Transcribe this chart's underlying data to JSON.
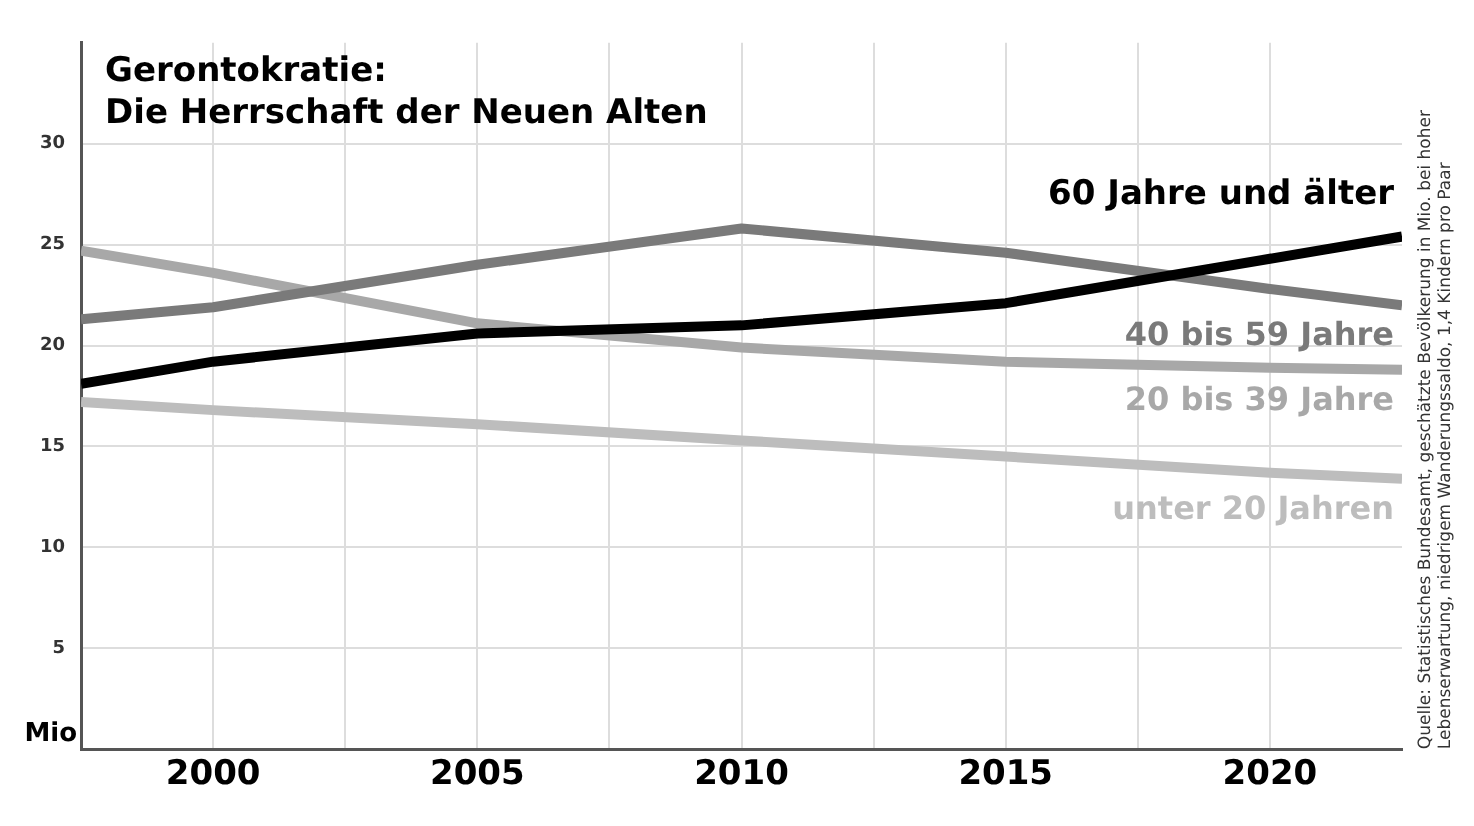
{
  "chart_data": {
    "type": "line",
    "title": "Gerontokratie:\nDie Herrschaft der Neuen Alten",
    "ylabel": "Mio",
    "annotations": [
      "Quelle: Statistisches Bundesamt, geschätzte Bevölkerung in Mio. bei hoher Lebenserwartung, niedrigem Wanderungssaldo, 1,4 Kindern pro Paar"
    ],
    "x": [
      1997.5,
      2000,
      2005,
      2010,
      2015,
      2020,
      2022.5
    ],
    "series": [
      {
        "name": "60 Jahre und älter",
        "color": "#000000",
        "values": [
          18.1,
          19.2,
          20.6,
          21.0,
          22.1,
          24.3,
          25.4
        ]
      },
      {
        "name": "40 bis 59 Jahre",
        "color": "#7a7a7a",
        "values": [
          21.3,
          21.9,
          24.0,
          25.8,
          24.6,
          22.8,
          22.0
        ]
      },
      {
        "name": "20 bis 39 Jahre",
        "color": "#a8a8a8",
        "values": [
          24.7,
          23.6,
          21.1,
          19.9,
          19.2,
          18.9,
          18.8
        ]
      },
      {
        "name": "unter 20 Jahren",
        "color": "#bdbdbd",
        "values": [
          17.2,
          16.8,
          16.1,
          15.3,
          14.5,
          13.7,
          13.4
        ]
      }
    ],
    "xlim": [
      1997.5,
      2022.5
    ],
    "xticks": [
      {
        "value": 2000,
        "label": "2000"
      },
      {
        "value": 2002.5,
        "label": null
      },
      {
        "value": 2005,
        "label": "2005"
      },
      {
        "value": 2007.5,
        "label": null
      },
      {
        "value": 2010,
        "label": "2010"
      },
      {
        "value": 2012.5,
        "label": null
      },
      {
        "value": 2015,
        "label": "2015"
      },
      {
        "value": 2017.5,
        "label": null
      },
      {
        "value": 2020,
        "label": "2020"
      }
    ],
    "ylim": [
      0,
      35
    ],
    "yticks": [
      {
        "value": 0,
        "label": null
      },
      5,
      10,
      15,
      20,
      25,
      30
    ],
    "grid": true,
    "legend": false,
    "marker": "none",
    "line_style": "solid"
  }
}
